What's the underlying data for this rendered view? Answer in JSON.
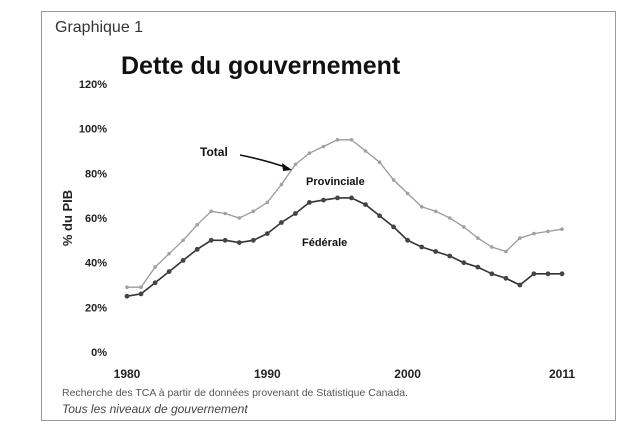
{
  "figure_label": "Graphique 1",
  "source": "Recherche des TCA à partir de données provenant de Statistique Canada.",
  "note": "Tous les niveaux de gouvernement",
  "colors": {
    "total": "#9a9a9a",
    "federal": "#333333",
    "marker_total": "#a0a0a0",
    "marker_federal": "#444444"
  },
  "chart_data": {
    "type": "line",
    "title": "Dette du gouvernement",
    "xlabel": "",
    "ylabel": "% du PIB",
    "xlim": [
      1980,
      2011
    ],
    "ylim": [
      0,
      120
    ],
    "x_ticks": [
      "1980",
      "1990",
      "2000",
      "2011"
    ],
    "x_tick_values": [
      1980,
      1990,
      2000,
      2011
    ],
    "y_ticks": [
      "0%",
      "20%",
      "40%",
      "60%",
      "80%",
      "100%",
      "120%"
    ],
    "y_tick_values": [
      0,
      20,
      40,
      60,
      80,
      100,
      120
    ],
    "grid": false,
    "x": [
      1980,
      1981,
      1982,
      1983,
      1984,
      1985,
      1986,
      1987,
      1988,
      1989,
      1990,
      1991,
      1992,
      1993,
      1994,
      1995,
      1996,
      1997,
      1998,
      1999,
      2000,
      2001,
      2002,
      2003,
      2004,
      2005,
      2006,
      2007,
      2008,
      2009,
      2010,
      2011
    ],
    "series": [
      {
        "name": "Total",
        "values": [
          29,
          29,
          38,
          44,
          50,
          57,
          63,
          62,
          60,
          63,
          67,
          75,
          84,
          89,
          92,
          95,
          95,
          90,
          85,
          77,
          71,
          65,
          63,
          60,
          56,
          51,
          47,
          45,
          51,
          53,
          54,
          55
        ]
      },
      {
        "name": "Fédérale",
        "values": [
          25,
          26,
          31,
          36,
          41,
          46,
          50,
          50,
          49,
          50,
          53,
          58,
          62,
          67,
          68,
          69,
          69,
          66,
          61,
          56,
          50,
          47,
          45,
          43,
          40,
          38,
          35,
          33,
          30,
          35,
          35,
          35
        ]
      }
    ],
    "annotations": [
      {
        "text": "Total",
        "target_series": "Total",
        "target_x": 1992
      },
      {
        "text": "Provinciale"
      },
      {
        "text": "Fédérale"
      }
    ]
  }
}
